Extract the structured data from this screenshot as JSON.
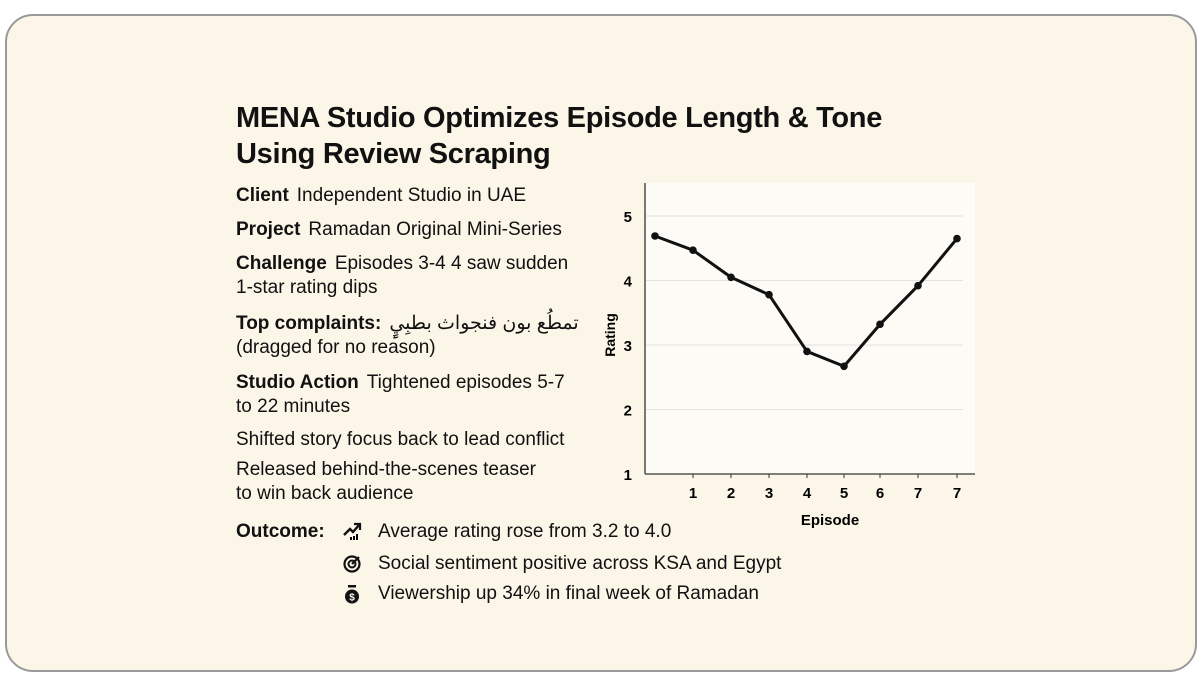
{
  "title": "MENA Studio Optimizes Episode Length & Tone Using Review Scraping",
  "details": [
    {
      "label": "Client",
      "text": "Independent Studio in UAE"
    },
    {
      "label": "Project",
      "text": "Ramadan Original Mini-Series"
    },
    {
      "label": "Challenge",
      "text": "Episodes 3-4 4 saw sudden",
      "text2": "1-star rating dips"
    },
    {
      "label": "Top complaints:",
      "text": "تمطُع بون فنجواث بطبِيٍٕ",
      "text2": "(dragged for no reason)"
    },
    {
      "label": "Studio Action",
      "text": "Tightened episodes 5-7",
      "text2": "to 22 minutes"
    }
  ],
  "actions": [
    "Shifted story focus back to lead conflict",
    "Released behind-the-scenes teaser",
    "to win back audience"
  ],
  "outcome": {
    "label": "Outcome:",
    "items": [
      {
        "icon": "trending-up-icon",
        "text": "Average rating rose from 3.2 to 4.0"
      },
      {
        "icon": "target-icon",
        "text": "Social sentiment positive across KSA and Egypt"
      },
      {
        "icon": "money-bag-icon",
        "text": "Viewership up 34% in final week of Ramadan"
      }
    ]
  },
  "colors": {
    "background": "#fbf6e8",
    "line": "#111111",
    "grid": "#e2e2e2"
  },
  "chart_data": {
    "type": "line",
    "xlabel": "Episode",
    "ylabel": "Rating",
    "categories": [
      "",
      "1",
      "2",
      "3",
      "4",
      "5",
      "6",
      "7",
      "7"
    ],
    "values": [
      4.69,
      4.47,
      4.05,
      3.78,
      2.9,
      2.67,
      3.32,
      3.92,
      4.65
    ],
    "yticks": [
      1,
      2,
      3,
      4,
      5
    ],
    "ylim": [
      1,
      5.5
    ],
    "grid": true
  }
}
